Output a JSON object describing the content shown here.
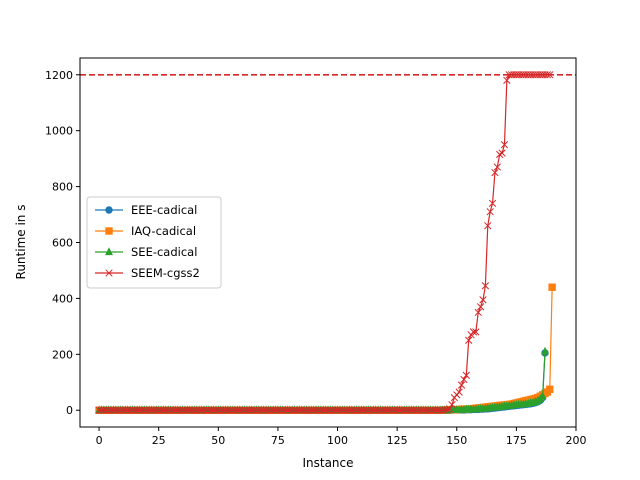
{
  "chart_data": {
    "type": "line",
    "title": "",
    "xlabel": "Instance",
    "ylabel": "Runtime in s",
    "xlim": [
      -8,
      200
    ],
    "ylim": [
      -60,
      1260
    ],
    "xticks": [
      0,
      25,
      50,
      75,
      100,
      125,
      150,
      175,
      200
    ],
    "yticks": [
      0,
      200,
      400,
      600,
      800,
      1000,
      1200
    ],
    "xtick_labels": [
      "0",
      "25",
      "50",
      "75",
      "100",
      "125",
      "150",
      "175",
      "200"
    ],
    "ytick_labels": [
      "0",
      "200",
      "400",
      "600",
      "800",
      "1000",
      "1200"
    ],
    "grid": false,
    "legend_position": "center-left",
    "reference_line": {
      "y": 1200,
      "color": "#d62728",
      "style": "dashed"
    },
    "series": [
      {
        "name": "EEE-cadical",
        "color": "#1f77b4",
        "marker": "circle",
        "x_start": 0,
        "values": [
          0,
          0,
          0,
          0,
          0,
          0,
          0,
          0,
          0,
          0,
          0,
          0,
          0,
          0,
          0,
          0,
          0,
          0,
          0,
          0,
          0,
          0,
          0,
          0,
          0,
          0,
          0,
          0,
          0,
          0,
          0,
          0,
          0,
          0,
          0,
          0,
          0,
          0,
          0,
          0,
          0,
          0,
          0,
          0,
          0,
          0,
          0,
          0,
          0,
          0,
          0,
          0,
          0,
          0,
          0,
          0,
          0,
          0,
          0,
          0,
          0,
          0,
          0,
          0,
          0,
          0,
          0,
          0,
          0,
          0,
          0,
          0,
          0,
          0,
          0,
          0,
          0,
          0,
          0,
          0,
          0,
          0,
          0,
          0,
          0,
          0,
          0,
          0,
          0,
          0,
          0,
          0,
          0,
          0,
          0,
          0,
          0,
          0,
          0,
          0,
          0,
          0,
          0,
          0,
          0,
          0,
          0,
          0,
          0,
          0,
          0,
          0,
          0,
          0,
          0,
          0,
          0,
          0,
          0,
          0,
          0,
          0,
          0,
          0,
          0,
          0,
          0,
          0,
          0,
          0,
          0,
          0,
          0,
          0,
          0,
          0,
          0,
          0,
          0,
          0,
          0,
          0,
          0,
          0,
          0,
          0,
          0,
          0,
          1,
          1,
          1,
          1,
          1,
          1,
          2,
          2,
          2,
          3,
          3,
          3,
          4,
          4,
          5,
          5,
          6,
          7,
          8,
          9,
          10,
          11,
          12,
          13,
          14,
          15,
          16,
          17,
          18,
          19,
          20,
          21,
          22,
          23,
          25,
          27,
          30,
          35,
          45,
          205
        ]
      },
      {
        "name": "IAQ-cadical",
        "color": "#ff7f0e",
        "marker": "square",
        "x_start": 0,
        "values": [
          0,
          0,
          0,
          0,
          0,
          0,
          0,
          0,
          0,
          0,
          0,
          0,
          0,
          0,
          0,
          0,
          0,
          0,
          0,
          0,
          0,
          0,
          0,
          0,
          0,
          0,
          0,
          0,
          0,
          0,
          0,
          0,
          0,
          0,
          0,
          0,
          0,
          0,
          0,
          0,
          0,
          0,
          0,
          0,
          0,
          0,
          0,
          0,
          0,
          0,
          0,
          0,
          0,
          0,
          0,
          0,
          0,
          0,
          0,
          0,
          0,
          0,
          0,
          0,
          0,
          0,
          0,
          0,
          0,
          0,
          0,
          0,
          0,
          0,
          0,
          0,
          0,
          0,
          0,
          0,
          0,
          0,
          0,
          0,
          0,
          0,
          0,
          0,
          0,
          0,
          0,
          0,
          0,
          0,
          0,
          0,
          0,
          0,
          0,
          0,
          0,
          0,
          0,
          0,
          0,
          0,
          0,
          0,
          0,
          0,
          0,
          0,
          0,
          0,
          0,
          0,
          0,
          0,
          0,
          0,
          0,
          0,
          0,
          0,
          0,
          0,
          0,
          0,
          0,
          0,
          0,
          0,
          0,
          0,
          0,
          0,
          0,
          0,
          0,
          0,
          0,
          0,
          0,
          0,
          0,
          1,
          1,
          1,
          2,
          2,
          2,
          3,
          3,
          4,
          4,
          5,
          5,
          6,
          7,
          8,
          9,
          10,
          11,
          12,
          13,
          14,
          15,
          16,
          17,
          18,
          19,
          20,
          21,
          22,
          24,
          26,
          28,
          30,
          32,
          34,
          36,
          38,
          40,
          42,
          45,
          50,
          55,
          60,
          65,
          75,
          440
        ]
      },
      {
        "name": "SEE-cadical",
        "color": "#2ca02c",
        "marker": "triangle",
        "x_start": 0,
        "values": [
          0,
          0,
          0,
          0,
          0,
          0,
          0,
          0,
          0,
          0,
          0,
          0,
          0,
          0,
          0,
          0,
          0,
          0,
          0,
          0,
          0,
          0,
          0,
          0,
          0,
          0,
          0,
          0,
          0,
          0,
          0,
          0,
          0,
          0,
          0,
          0,
          0,
          0,
          0,
          0,
          0,
          0,
          0,
          0,
          0,
          0,
          0,
          0,
          0,
          0,
          0,
          0,
          0,
          0,
          0,
          0,
          0,
          0,
          0,
          0,
          0,
          0,
          0,
          0,
          0,
          0,
          0,
          0,
          0,
          0,
          0,
          0,
          0,
          0,
          0,
          0,
          0,
          0,
          0,
          0,
          0,
          0,
          0,
          0,
          0,
          0,
          0,
          0,
          0,
          0,
          0,
          0,
          0,
          0,
          0,
          0,
          0,
          0,
          0,
          0,
          0,
          0,
          0,
          0,
          0,
          0,
          0,
          0,
          0,
          0,
          0,
          0,
          0,
          0,
          0,
          0,
          0,
          0,
          0,
          0,
          0,
          0,
          0,
          0,
          0,
          0,
          0,
          0,
          0,
          0,
          0,
          0,
          0,
          0,
          0,
          0,
          0,
          0,
          0,
          0,
          0,
          0,
          0,
          0,
          0,
          0,
          0,
          0,
          1,
          1,
          1,
          1,
          2,
          2,
          2,
          3,
          3,
          3,
          4,
          4,
          5,
          5,
          6,
          7,
          8,
          9,
          10,
          11,
          12,
          13,
          14,
          15,
          16,
          17,
          18,
          19,
          20,
          21,
          22,
          23,
          24,
          26,
          28,
          30,
          35,
          40,
          50,
          210
        ]
      },
      {
        "name": "SEEM-cgss2",
        "color": "#d62728",
        "marker": "x",
        "x_start": 0,
        "values": [
          0,
          0,
          0,
          0,
          0,
          0,
          0,
          0,
          0,
          0,
          0,
          0,
          0,
          0,
          0,
          0,
          0,
          0,
          0,
          0,
          0,
          0,
          0,
          0,
          0,
          0,
          0,
          0,
          0,
          0,
          0,
          0,
          0,
          0,
          0,
          0,
          0,
          0,
          0,
          0,
          0,
          0,
          0,
          0,
          0,
          0,
          0,
          0,
          0,
          0,
          0,
          0,
          0,
          0,
          0,
          0,
          0,
          0,
          0,
          0,
          0,
          0,
          0,
          0,
          0,
          0,
          0,
          0,
          0,
          0,
          0,
          0,
          0,
          0,
          0,
          0,
          0,
          0,
          0,
          0,
          0,
          0,
          0,
          0,
          0,
          0,
          0,
          0,
          0,
          0,
          0,
          0,
          0,
          0,
          0,
          0,
          0,
          0,
          0,
          0,
          0,
          0,
          0,
          0,
          0,
          0,
          0,
          0,
          0,
          0,
          0,
          0,
          0,
          0,
          0,
          0,
          0,
          0,
          0,
          0,
          0,
          0,
          0,
          0,
          0,
          0,
          0,
          0,
          0,
          0,
          0,
          0,
          0,
          0,
          0,
          0,
          0,
          0,
          0,
          0,
          0,
          0,
          0,
          0,
          0,
          1,
          2,
          5,
          20,
          45,
          55,
          65,
          90,
          110,
          125,
          250,
          270,
          280,
          280,
          350,
          370,
          395,
          445,
          660,
          710,
          740,
          850,
          870,
          915,
          920,
          950,
          1180,
          1200,
          1200,
          1200,
          1200,
          1200,
          1200,
          1200,
          1200,
          1200,
          1200,
          1200,
          1200,
          1200,
          1200,
          1200,
          1200,
          1200,
          1200
        ]
      }
    ]
  }
}
